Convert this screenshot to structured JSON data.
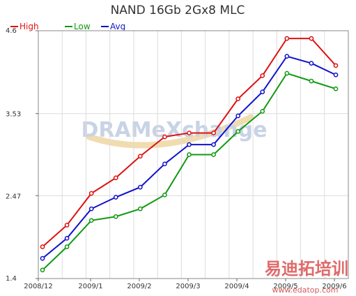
{
  "chart_data": {
    "type": "line",
    "title": "NAND 16Gb 2Gx8   MLC",
    "x": [
      "2008/12a",
      "2008/12b",
      "2009/1a",
      "2009/1b",
      "2009/2a",
      "2009/2b",
      "2009/3a",
      "2009/3b",
      "2009/4a",
      "2009/4b",
      "2009/5a",
      "2009/5b",
      "2009/6a"
    ],
    "x_tick_labels": [
      "2008/12",
      "2009/1",
      "2009/2",
      "2009/3",
      "2009/4",
      "2009/5",
      "2009/6"
    ],
    "y_tick_labels": [
      "4.6",
      "3.53",
      "2.47",
      "1.4"
    ],
    "ylim": [
      1.4,
      4.6
    ],
    "grid": true,
    "legend_position": "top-left",
    "series": [
      {
        "name": "High",
        "color": "#dd1111",
        "values": [
          1.81,
          2.09,
          2.5,
          2.7,
          2.98,
          3.23,
          3.28,
          3.28,
          3.72,
          4.02,
          4.5,
          4.5,
          4.15
        ]
      },
      {
        "name": "Low",
        "color": "#119911",
        "values": [
          1.51,
          1.81,
          2.15,
          2.2,
          2.3,
          2.48,
          3.0,
          3.0,
          3.3,
          3.56,
          4.05,
          3.95,
          3.85
        ]
      },
      {
        "name": "Avg",
        "color": "#1111cc",
        "values": [
          1.66,
          1.92,
          2.3,
          2.45,
          2.58,
          2.88,
          3.13,
          3.13,
          3.5,
          3.81,
          4.27,
          4.18,
          4.03
        ]
      }
    ]
  },
  "watermark": {
    "main": "DRAMeXchange",
    "cn": "易迪拓培训",
    "url": "www.edatop.com"
  }
}
